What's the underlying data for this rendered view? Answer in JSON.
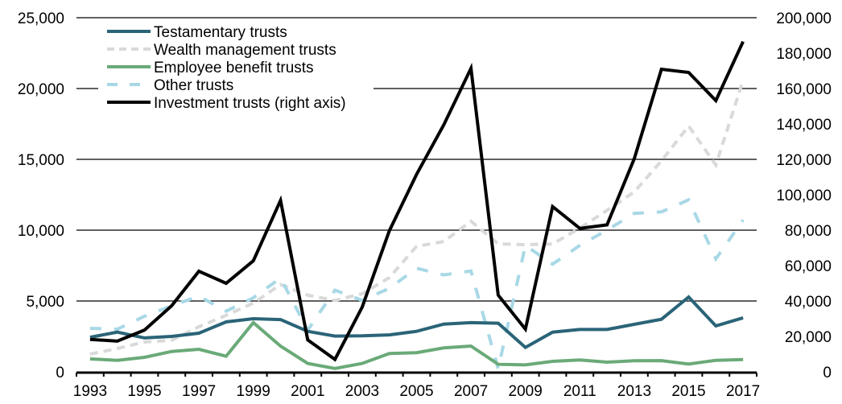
{
  "chart_data": {
    "type": "line",
    "title": "",
    "xlabel": "",
    "ylabel": "",
    "y2label": "",
    "x": [
      "1993",
      "1994",
      "1995",
      "1996",
      "1997",
      "1998",
      "1999",
      "2000",
      "2001",
      "2002",
      "2003",
      "2004",
      "2005",
      "2006",
      "2007",
      "2008",
      "2009",
      "2010",
      "2011",
      "2012",
      "2013",
      "2014",
      "2015",
      "2016",
      "2017"
    ],
    "x_tick_labels": [
      "1993",
      "1995",
      "1997",
      "1999",
      "2001",
      "2003",
      "2005",
      "2007",
      "2009",
      "2011",
      "2013",
      "2015",
      "2017"
    ],
    "ylim": [
      0,
      25000
    ],
    "y_ticks": [
      0,
      5000,
      10000,
      15000,
      20000,
      25000
    ],
    "y_tick_labels": [
      "0",
      "5,000",
      "10,000",
      "15,000",
      "20,000",
      "25,000"
    ],
    "y2lim": [
      0,
      200000
    ],
    "y2_ticks": [
      0,
      20000,
      40000,
      60000,
      80000,
      100000,
      120000,
      140000,
      160000,
      180000,
      200000
    ],
    "y2_tick_labels": [
      "0",
      "20,000",
      "40,000",
      "60,000",
      "80,000",
      "100,000",
      "120,000",
      "140,000",
      "160,000",
      "180,000",
      "200,000"
    ],
    "grid": true,
    "legend_position": "top-left",
    "series": [
      {
        "name": "Testamentary trusts",
        "axis": "left",
        "color": "#2a6478",
        "dash": "solid",
        "values": [
          2440,
          2800,
          2390,
          2500,
          2730,
          3520,
          3750,
          3690,
          2860,
          2520,
          2540,
          2610,
          2860,
          3370,
          3470,
          3430,
          1720,
          2800,
          2990,
          2990,
          3350,
          3710,
          5280,
          3240,
          3810
        ]
      },
      {
        "name": "Wealth management trusts",
        "axis": "left",
        "color": "#d9d9d9",
        "dash": "dashed",
        "values": [
          1250,
          1650,
          2100,
          2230,
          3180,
          3990,
          4850,
          6160,
          5410,
          5040,
          5510,
          6650,
          8860,
          9200,
          10630,
          9030,
          8980,
          9020,
          10150,
          11400,
          12700,
          14890,
          17350,
          14600,
          20570
        ]
      },
      {
        "name": "Employee benefit trusts",
        "axis": "left",
        "color": "#6aaa78",
        "dash": "solid",
        "values": [
          910,
          810,
          1020,
          1440,
          1590,
          1100,
          3470,
          1820,
          590,
          240,
          590,
          1290,
          1350,
          1690,
          1820,
          530,
          490,
          740,
          840,
          680,
          780,
          790,
          550,
          810,
          870
        ]
      },
      {
        "name": "Other trusts",
        "axis": "left",
        "color": "#a8d8e6",
        "dash": "longdash",
        "values": [
          3070,
          3010,
          3920,
          4660,
          5340,
          4280,
          5230,
          6620,
          2950,
          5760,
          5040,
          5890,
          7310,
          6840,
          7120,
          210,
          8920,
          7600,
          8920,
          10000,
          11190,
          11290,
          12140,
          7970,
          10720
        ]
      },
      {
        "name": "Investment trusts (right axis)",
        "axis": "right",
        "color": "#000000",
        "dash": "solid",
        "values": [
          18300,
          17300,
          23600,
          37300,
          56800,
          50000,
          62700,
          96800,
          18000,
          7000,
          36500,
          79700,
          111500,
          139500,
          171400,
          43300,
          24100,
          93300,
          81000,
          83000,
          120300,
          170900,
          169100,
          153200,
          186500
        ]
      }
    ]
  }
}
